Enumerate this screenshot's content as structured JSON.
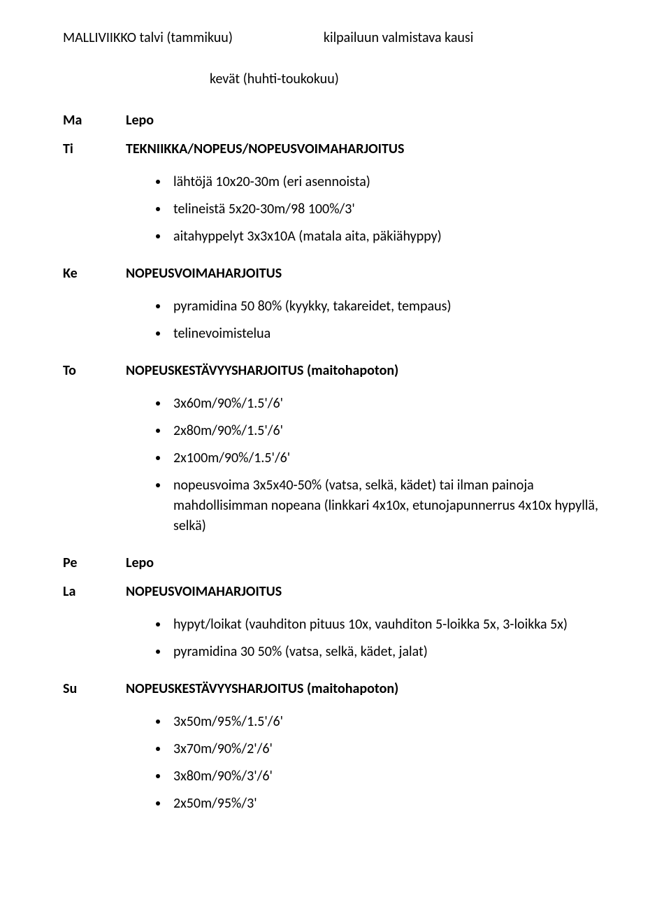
{
  "topRow": {
    "left": "MALLIVIIKKO talvi (tammikuu)",
    "right": "kilpailuun valmistava kausi"
  },
  "subRow": "kevät (huhti-toukokuu)",
  "days": {
    "ma": {
      "label": "Ma",
      "text": "Lepo"
    },
    "ti": {
      "label": "Ti",
      "heading": "TEKNIIKKA/NOPEUS/NOPEUSVOIMAHARJOITUS",
      "items": [
        "lähtöjä 10x20-30m (eri asennoista)",
        "telineistä 5x20-30m/98 100%/3'",
        "aitahyppelyt 3x3x10A (matala aita, päkiähyppy)"
      ]
    },
    "ke": {
      "label": "Ke",
      "heading": "NOPEUSVOIMAHARJOITUS",
      "items": [
        "pyramidina 50 80% (kyykky, takareidet, tempaus)",
        "telinevoimistelua"
      ]
    },
    "to": {
      "label": "To",
      "heading": "NOPEUSKESTÄVYYSHARJOITUS (maitohapoton)",
      "items": [
        "3x60m/90%/1.5'/6'",
        "2x80m/90%/1.5'/6'",
        "2x100m/90%/1.5'/6'",
        "nopeusvoima 3x5x40-50% (vatsa, selkä, kädet) tai ilman painoja mahdollisimman nopeana (linkkari 4x10x, etunojapunnerrus 4x10x hypyllä, selkä)"
      ]
    },
    "pe": {
      "label": "Pe",
      "text": "Lepo"
    },
    "la": {
      "label": "La",
      "heading": "NOPEUSVOIMAHARJOITUS",
      "items": [
        "hypyt/loikat (vauhditon pituus 10x, vauhditon 5-loikka 5x, 3-loikka 5x)",
        "pyramidina 30 50% (vatsa, selkä, kädet, jalat)"
      ]
    },
    "su": {
      "label": "Su",
      "heading": "NOPEUSKESTÄVYYSHARJOITUS (maitohapoton)",
      "items": [
        "3x50m/95%/1.5'/6'",
        "3x70m/90%/2'/6'",
        "3x80m/90%/3'/6'",
        "2x50m/95%/3'"
      ]
    }
  }
}
